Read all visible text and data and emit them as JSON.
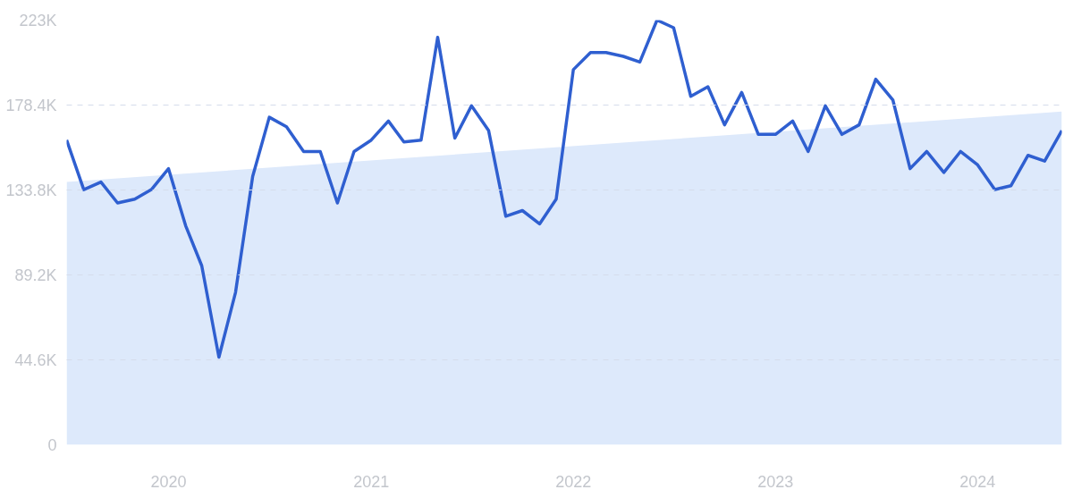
{
  "chart_data": {
    "type": "line",
    "x": [
      "2019-07",
      "2019-08",
      "2019-09",
      "2019-10",
      "2019-11",
      "2019-12",
      "2020-01",
      "2020-02",
      "2020-03",
      "2020-04",
      "2020-05",
      "2020-06",
      "2020-07",
      "2020-08",
      "2020-09",
      "2020-10",
      "2020-11",
      "2020-12",
      "2021-01",
      "2021-02",
      "2021-03",
      "2021-04",
      "2021-05",
      "2021-06",
      "2021-07",
      "2021-08",
      "2021-09",
      "2021-10",
      "2021-11",
      "2021-12",
      "2022-01",
      "2022-02",
      "2022-03",
      "2022-04",
      "2022-05",
      "2022-06",
      "2022-07",
      "2022-08",
      "2022-09",
      "2022-10",
      "2022-11",
      "2022-12",
      "2023-01",
      "2023-02",
      "2023-03",
      "2023-04",
      "2023-05",
      "2023-06",
      "2023-07",
      "2023-08",
      "2023-09",
      "2023-10",
      "2023-11",
      "2023-12",
      "2024-01",
      "2024-02",
      "2024-03",
      "2024-04",
      "2024-05",
      "2024-06"
    ],
    "series": [
      {
        "type": "area",
        "color": "#dde9fb",
        "x": [
          "2019-07",
          "2024-06"
        ],
        "values": [
          138000,
          175000
        ]
      },
      {
        "color": "#2f5fd0",
        "values": [
          160000,
          134000,
          138000,
          127000,
          129000,
          134000,
          145000,
          115000,
          94000,
          46000,
          80000,
          141000,
          172000,
          167000,
          154000,
          154000,
          127000,
          154000,
          160000,
          170000,
          159000,
          160000,
          214000,
          161000,
          178000,
          165000,
          120000,
          123000,
          116000,
          129000,
          197000,
          206000,
          206000,
          204000,
          201000,
          223000,
          219000,
          183000,
          188000,
          168000,
          185000,
          163000,
          163000,
          170000,
          154000,
          178000,
          163000,
          168000,
          192000,
          181000,
          145000,
          154000,
          143000,
          154000,
          147000,
          134000,
          136000,
          152000,
          149000,
          165000
        ]
      }
    ],
    "xlim": [
      "2019-07",
      "2024-06"
    ],
    "xticks": [
      {
        "value": "2020-01",
        "label": "2020"
      },
      {
        "value": "2021-01",
        "label": "2021"
      },
      {
        "value": "2022-01",
        "label": "2022"
      },
      {
        "value": "2023-01",
        "label": "2023"
      },
      {
        "value": "2024-01",
        "label": "2024"
      }
    ],
    "ylim": [
      0,
      223000
    ],
    "yticks": [
      0,
      {
        "value": 44600,
        "label": "44.6K"
      },
      {
        "value": 89200,
        "label": "89.2K"
      },
      {
        "value": 133800,
        "label": "133.8K"
      },
      {
        "value": 178400,
        "label": "178.4K"
      },
      {
        "value": 223000,
        "label": "223K"
      }
    ],
    "grid": "y",
    "marker": "none",
    "line_style": "solid"
  }
}
